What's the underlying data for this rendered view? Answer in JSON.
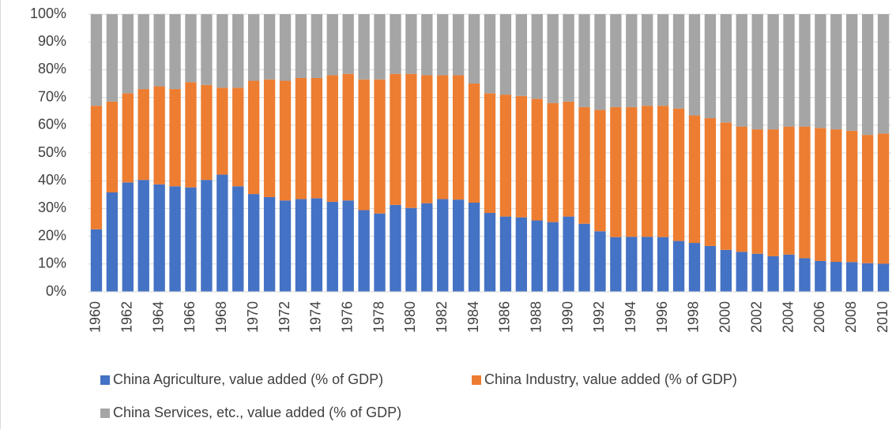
{
  "chart_data": {
    "type": "stacked-bar",
    "categories": [
      "1960",
      null,
      "1962",
      null,
      "1964",
      null,
      "1966",
      null,
      "1968",
      null,
      "1970",
      null,
      "1972",
      null,
      "1974",
      null,
      "1976",
      null,
      "1978",
      null,
      "1980",
      null,
      "1982",
      null,
      "1984",
      null,
      "1986",
      null,
      "1988",
      null,
      "1990",
      null,
      "1992",
      null,
      "1994",
      null,
      "1996",
      null,
      "1998",
      null,
      "2000",
      null,
      "2002",
      null,
      "2004",
      null,
      "2006",
      null,
      "2008",
      null,
      "2010"
    ],
    "series": [
      {
        "name": "China Agriculture, value added (% of GDP)",
        "color": "#4472c4",
        "values": [
          22.5,
          35.8,
          39.4,
          40.3,
          38.7,
          38.0,
          37.6,
          40.3,
          42.2,
          38.0,
          35.2,
          34.1,
          32.9,
          33.4,
          33.7,
          32.4,
          32.9,
          29.4,
          28.2,
          31.3,
          30.2,
          31.9,
          33.4,
          33.2,
          32.1,
          28.4,
          27.1,
          26.8,
          25.7,
          25.1,
          27.1,
          24.5,
          21.8,
          19.7,
          19.8,
          19.8,
          19.7,
          18.3,
          17.6,
          16.5,
          15.1,
          14.4,
          13.7,
          12.8,
          13.4,
          12.1,
          11.1,
          10.8,
          10.7,
          10.3,
          10.1
        ]
      },
      {
        "name": "China Industry, value added (% of GDP)",
        "color": "#ed7d31",
        "values": [
          44.5,
          32.7,
          32.1,
          32.7,
          35.3,
          35.0,
          37.9,
          34.2,
          31.3,
          35.5,
          40.8,
          42.4,
          43.1,
          43.6,
          43.3,
          45.6,
          45.6,
          47.1,
          48.3,
          47.2,
          48.3,
          46.1,
          44.6,
          44.8,
          42.9,
          43.1,
          43.9,
          43.7,
          43.8,
          42.9,
          41.4,
          42.0,
          43.7,
          46.8,
          46.7,
          47.2,
          47.3,
          47.7,
          45.9,
          46.0,
          45.9,
          45.1,
          44.8,
          45.7,
          46.1,
          47.4,
          47.9,
          47.7,
          47.3,
          46.2,
          46.9
        ]
      },
      {
        "name": "China Services, etc., value added (% of GDP)",
        "color": "#a5a5a5",
        "values": [
          33,
          31.5,
          28.5,
          27,
          26,
          27,
          24.5,
          25.5,
          26.5,
          26.5,
          24,
          23.5,
          24,
          23,
          23,
          22,
          21.5,
          23.5,
          23.5,
          21.5,
          21.5,
          22,
          22,
          22,
          25,
          28.5,
          29,
          29.5,
          30.5,
          32,
          31.5,
          33.5,
          34.5,
          33.5,
          33.5,
          33,
          33,
          34,
          36.5,
          37.5,
          39,
          40.5,
          41.5,
          41.5,
          40.5,
          40.5,
          41,
          41.5,
          42,
          43.5,
          43
        ]
      }
    ],
    "ylim": [
      0,
      100
    ],
    "yticks": [
      {
        "value": 0,
        "label": "0%"
      },
      {
        "value": 10,
        "label": "10%"
      },
      {
        "value": 20,
        "label": "20%"
      },
      {
        "value": 30,
        "label": "30%"
      },
      {
        "value": 40,
        "label": "40%"
      },
      {
        "value": 50,
        "label": "50%"
      },
      {
        "value": 60,
        "label": "60%"
      },
      {
        "value": 70,
        "label": "70%"
      },
      {
        "value": 80,
        "label": "80%"
      },
      {
        "value": 90,
        "label": "90%"
      },
      {
        "value": 100,
        "label": "100%"
      }
    ],
    "grid": true,
    "legend": "bottom"
  }
}
